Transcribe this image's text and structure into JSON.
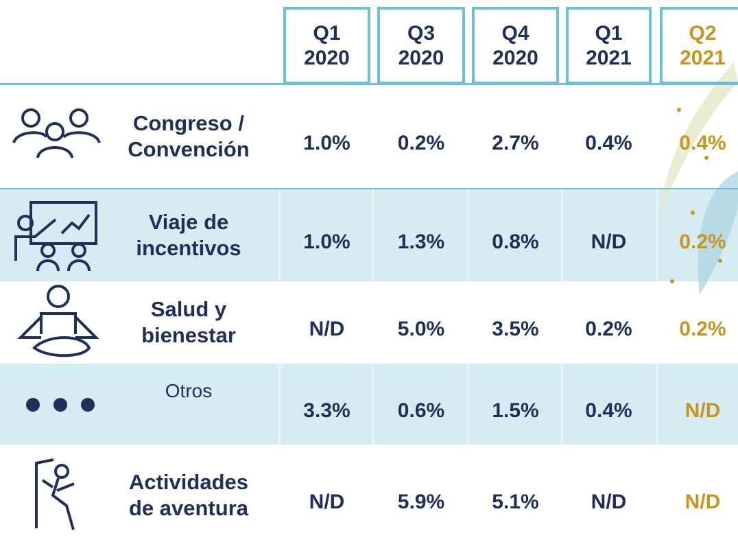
{
  "table": {
    "headers": [
      {
        "quarter": "Q1",
        "year": "2020"
      },
      {
        "quarter": "Q3",
        "year": "2020"
      },
      {
        "quarter": "Q4",
        "year": "2020"
      },
      {
        "quarter": "Q1",
        "year": "2021"
      },
      {
        "quarter": "Q2",
        "year": "2021"
      }
    ],
    "rows": [
      {
        "label": [
          "Congreso /",
          "Convención"
        ],
        "cells": [
          "1.0%",
          "0.2%",
          "2.7%",
          "0.4%",
          "0.4%"
        ]
      },
      {
        "label": [
          "Viaje de",
          "incentivos"
        ],
        "cells": [
          "1.0%",
          "1.3%",
          "0.8%",
          "N/D",
          "0.2%"
        ]
      },
      {
        "label": [
          "Salud y",
          "bienestar"
        ],
        "cells": [
          "N/D",
          "5.0%",
          "3.5%",
          "0.2%",
          "0.2%"
        ]
      },
      {
        "label": [
          "Otros"
        ],
        "cells": [
          "3.3%",
          "0.6%",
          "1.5%",
          "0.4%",
          "N/D"
        ]
      },
      {
        "label": [
          "Actividades",
          "de aventura"
        ],
        "cells": [
          "N/D",
          "5.9%",
          "5.1%",
          "N/D",
          "N/D"
        ]
      }
    ]
  }
}
